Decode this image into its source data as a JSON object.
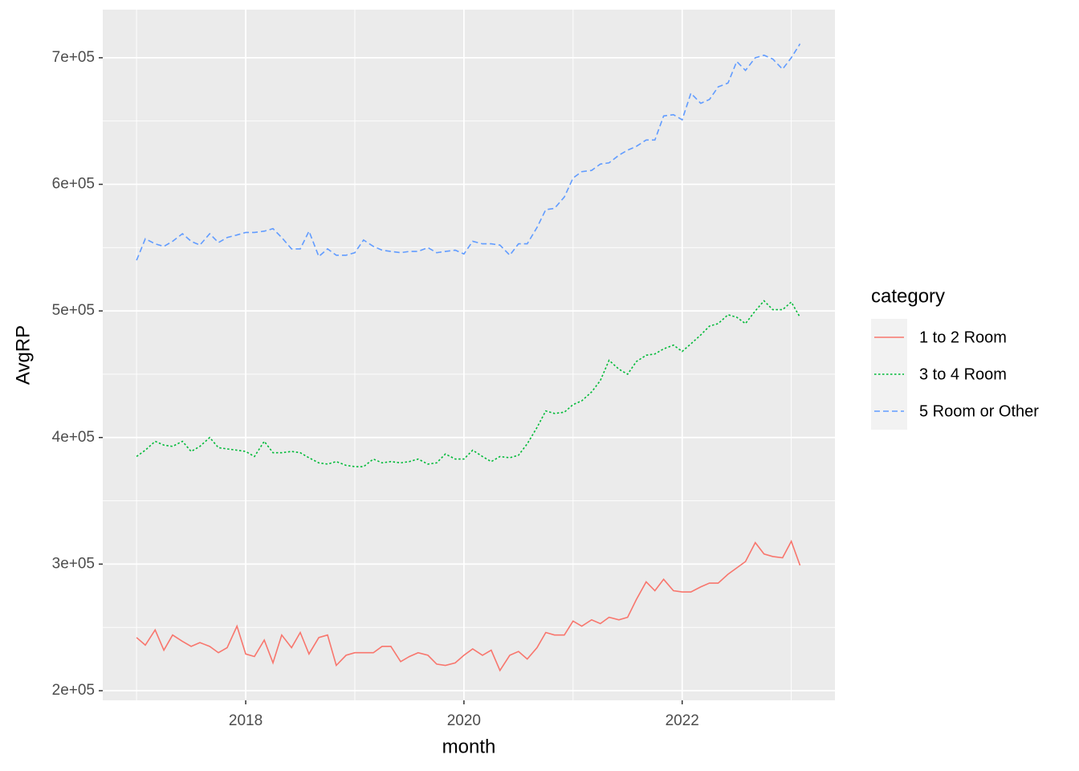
{
  "chart_data": {
    "type": "line",
    "x_label": "month",
    "y_label": "AvgRP",
    "legend_title": "category",
    "legend": "right",
    "grid": true,
    "x": [
      2017,
      2017.08,
      2017.17,
      2017.25,
      2017.33,
      2017.42,
      2017.5,
      2017.58,
      2017.67,
      2017.75,
      2017.83,
      2017.92,
      2018,
      2018.08,
      2018.17,
      2018.25,
      2018.33,
      2018.42,
      2018.5,
      2018.58,
      2018.67,
      2018.75,
      2018.83,
      2018.92,
      2019,
      2019.08,
      2019.17,
      2019.25,
      2019.33,
      2019.42,
      2019.5,
      2019.58,
      2019.67,
      2019.75,
      2019.83,
      2019.92,
      2020,
      2020.08,
      2020.17,
      2020.25,
      2020.33,
      2020.42,
      2020.5,
      2020.58,
      2020.67,
      2020.75,
      2020.83,
      2020.92,
      2021,
      2021.08,
      2021.17,
      2021.25,
      2021.33,
      2021.42,
      2021.5,
      2021.58,
      2021.67,
      2021.75,
      2021.83,
      2021.92,
      2022,
      2022.08,
      2022.17,
      2022.25,
      2022.33,
      2022.42,
      2022.5,
      2022.58,
      2022.67,
      2022.75,
      2022.83,
      2022.92,
      2023,
      2023.08
    ],
    "xlim": [
      2016.69,
      2023.4
    ],
    "xticks": [
      2018,
      2020,
      2022
    ],
    "ylim": [
      192400,
      738000
    ],
    "yticks": [
      {
        "value": 200000,
        "label": "2e+05"
      },
      {
        "value": 300000,
        "label": "3e+05"
      },
      {
        "value": 400000,
        "label": "4e+05"
      },
      {
        "value": 500000,
        "label": "5e+05"
      },
      {
        "value": 600000,
        "label": "6e+05"
      },
      {
        "value": 700000,
        "label": "7e+05"
      }
    ],
    "series": [
      {
        "name": "1 to 2 Room",
        "color": "#F8766D",
        "dash": "solid",
        "values": [
          242000,
          236000,
          248000,
          232000,
          244000,
          239000,
          235000,
          238000,
          235000,
          230000,
          234000,
          251000,
          229000,
          227000,
          240000,
          222000,
          244000,
          234000,
          246000,
          229000,
          242000,
          244000,
          220000,
          228000,
          230000,
          230000,
          230000,
          235000,
          235000,
          223000,
          227000,
          230000,
          228000,
          221000,
          220000,
          222000,
          228000,
          233000,
          228000,
          232000,
          216000,
          228000,
          231000,
          225000,
          234000,
          246000,
          244000,
          244000,
          255000,
          251000,
          256000,
          253000,
          258000,
          256000,
          258000,
          272000,
          286000,
          279000,
          288000,
          279000,
          278000,
          278000,
          282000,
          285000,
          285000,
          292000,
          297000,
          302000,
          317000,
          308000,
          306000,
          305000,
          318000,
          299000
        ]
      },
      {
        "name": "3 to 4 Room",
        "color": "#00BA38",
        "dash": "dotted",
        "values": [
          385000,
          390000,
          397000,
          394000,
          393000,
          397000,
          389000,
          393000,
          400000,
          392000,
          391000,
          390000,
          389000,
          385000,
          397000,
          388000,
          388000,
          389000,
          388000,
          384000,
          380000,
          379000,
          381000,
          378000,
          377000,
          377000,
          383000,
          380000,
          381000,
          380000,
          381000,
          383000,
          379000,
          380000,
          387000,
          383000,
          383000,
          390000,
          385000,
          381000,
          385000,
          384000,
          386000,
          395000,
          408000,
          421000,
          419000,
          420000,
          426000,
          429000,
          436000,
          445000,
          461000,
          454000,
          450000,
          460000,
          465000,
          466000,
          470000,
          473000,
          468000,
          474000,
          481000,
          488000,
          490000,
          497000,
          495000,
          490000,
          500000,
          508000,
          501000,
          501000,
          507000,
          495000
        ]
      },
      {
        "name": "5 Room or Other",
        "color": "#619CFF",
        "dash": "dashed",
        "values": [
          540000,
          557000,
          553000,
          551000,
          555000,
          561000,
          555000,
          552000,
          561000,
          554000,
          558000,
          560000,
          562000,
          562000,
          563000,
          565000,
          558000,
          549000,
          549000,
          563000,
          543000,
          549000,
          544000,
          544000,
          546000,
          556000,
          551000,
          548000,
          547000,
          546000,
          547000,
          547000,
          550000,
          546000,
          547000,
          548000,
          545000,
          555000,
          553000,
          553000,
          552000,
          544000,
          553000,
          553000,
          566000,
          580000,
          581000,
          590000,
          605000,
          610000,
          611000,
          616000,
          617000,
          623000,
          627000,
          630000,
          635000,
          635000,
          654000,
          655000,
          651000,
          672000,
          664000,
          667000,
          677000,
          680000,
          697000,
          690000,
          700000,
          702000,
          699000,
          691000,
          700000,
          711000
        ]
      }
    ]
  }
}
